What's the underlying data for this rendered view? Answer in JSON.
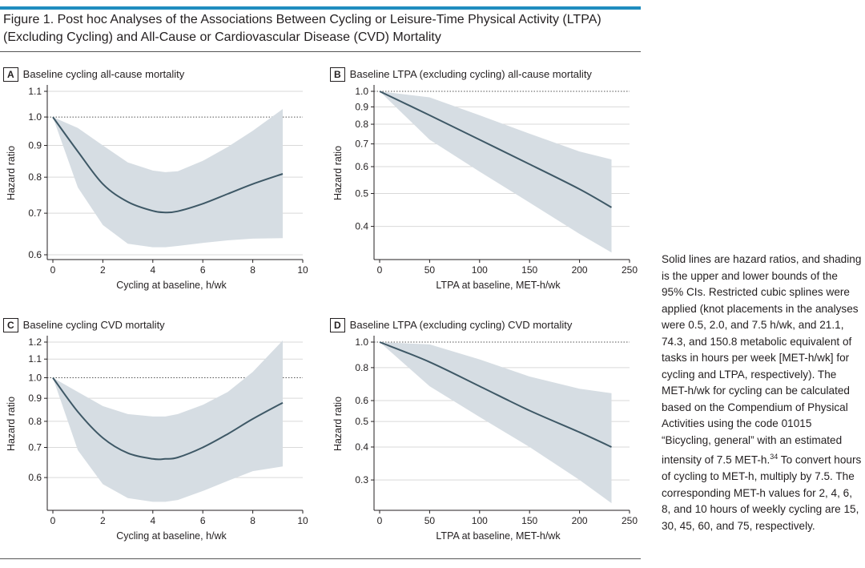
{
  "figure_title": "Figure 1. Post hoc Analyses of the Associations Between Cycling or Leisure-Time Physical Activity (LTPA) (Excluding Cycling) and All-Cause or Cardiovascular Disease (CVD) Mortality",
  "caption": {
    "text_before_sup": "Solid lines are hazard ratios, and shading is the upper and lower bounds of the 95% CIs. Restricted cubic splines were applied (knot placements in the analyses were 0.5, 2.0, and 7.5 h/wk, and 21.1, 74.3, and 150.8 metabolic equivalent of tasks in hours per week [MET-h/wk] for cycling and LTPA, respectively). The MET-h/wk for cycling can be calculated based on the Compendium of Physical Activities using the code 01015 “Bicycling, general” with an estimated intensity of 7.5 MET-h.",
    "sup": "34",
    "text_after_sup": " To convert hours of cycling to MET-h, multiply by 7.5. The corresponding MET-h values for 2, 4, 6, 8, and 10 hours of weekly cycling are 15, 30, 45, 60, and 75, respectively."
  },
  "colors": {
    "line": "#3e5866",
    "band": "#d6dde3",
    "grid": "#d9d9d9",
    "accent": "#1f8dbf"
  },
  "chart_data": [
    {
      "panel": "A",
      "type": "line",
      "title": "Baseline cycling all-cause mortality",
      "xlabel": "Cycling at baseline, h/wk",
      "ylabel": "Hazard ratio",
      "xlim": [
        0,
        10
      ],
      "ylim": [
        0.6,
        1.1
      ],
      "yscale": "log",
      "xticks": [
        0,
        2,
        4,
        6,
        8,
        10
      ],
      "yticks": [
        0.6,
        0.7,
        0.8,
        0.9,
        1.0,
        1.1
      ],
      "ytick_labels": [
        "0.6",
        "0.7",
        "0.8",
        "0.9",
        "1.0",
        "1.1"
      ],
      "reference_y": 1.0,
      "grid": true,
      "x": [
        0,
        1,
        2,
        3,
        4,
        4.5,
        5,
        6,
        7,
        8,
        9.2
      ],
      "y": [
        1.0,
        0.88,
        0.78,
        0.73,
        0.706,
        0.702,
        0.705,
        0.725,
        0.752,
        0.78,
        0.81
      ],
      "lower": [
        1.0,
        0.77,
        0.67,
        0.625,
        0.617,
        0.617,
        0.62,
        0.627,
        0.633,
        0.637,
        0.638
      ],
      "upper": [
        1.0,
        0.96,
        0.9,
        0.845,
        0.82,
        0.815,
        0.818,
        0.85,
        0.895,
        0.95,
        1.03
      ]
    },
    {
      "panel": "B",
      "type": "line",
      "title": "Baseline LTPA (excluding cycling) all-cause mortality",
      "xlabel": "LTPA at baseline, MET-h/wk",
      "ylabel": "Hazard ratio",
      "xlim": [
        0,
        250
      ],
      "ylim": [
        0.33,
        1.0
      ],
      "yscale": "log",
      "xticks": [
        0,
        50,
        100,
        150,
        200,
        250
      ],
      "yticks": [
        0.4,
        0.5,
        0.6,
        0.7,
        0.8,
        0.9,
        1.0
      ],
      "ytick_labels": [
        "0.4",
        "0.5",
        "0.6",
        "0.7",
        "0.8",
        "0.9",
        "1.0"
      ],
      "reference_y": 1.0,
      "grid": true,
      "x": [
        0,
        50,
        100,
        150,
        200,
        232
      ],
      "y": [
        1.0,
        0.85,
        0.72,
        0.61,
        0.515,
        0.455
      ],
      "lower": [
        1.0,
        0.72,
        0.58,
        0.47,
        0.38,
        0.335
      ],
      "upper": [
        1.0,
        0.96,
        0.85,
        0.75,
        0.665,
        0.63
      ]
    },
    {
      "panel": "C",
      "type": "line",
      "title": "Baseline cycling CVD mortality",
      "xlabel": "Cycling at baseline, h/wk",
      "ylabel": "Hazard ratio",
      "xlim": [
        0,
        10
      ],
      "ylim": [
        0.52,
        1.2
      ],
      "yscale": "log",
      "xticks": [
        0,
        2,
        4,
        6,
        8,
        10
      ],
      "yticks": [
        0.6,
        0.7,
        0.8,
        0.9,
        1.0,
        1.1,
        1.2
      ],
      "ytick_labels": [
        "0.6",
        "0.7",
        "0.8",
        "0.9",
        "1.0",
        "1.1",
        "1.2"
      ],
      "reference_y": 1.0,
      "grid": true,
      "x": [
        0,
        1,
        2,
        3,
        4,
        4.5,
        5,
        6,
        7,
        8,
        9.2
      ],
      "y": [
        1.0,
        0.84,
        0.735,
        0.68,
        0.66,
        0.66,
        0.665,
        0.7,
        0.75,
        0.81,
        0.88
      ],
      "lower": [
        1.0,
        0.69,
        0.58,
        0.54,
        0.53,
        0.53,
        0.535,
        0.56,
        0.59,
        0.62,
        0.635
      ],
      "upper": [
        1.0,
        0.93,
        0.865,
        0.83,
        0.82,
        0.82,
        0.83,
        0.87,
        0.93,
        1.03,
        1.21
      ]
    },
    {
      "panel": "D",
      "type": "line",
      "title": "Baseline LTPA (excluding cycling) CVD mortality",
      "xlabel": "LTPA at baseline, MET-h/wk",
      "ylabel": "Hazard ratio",
      "xlim": [
        0,
        250
      ],
      "ylim": [
        0.24,
        1.0
      ],
      "yscale": "log",
      "xticks": [
        0,
        50,
        100,
        150,
        200,
        250
      ],
      "yticks": [
        0.3,
        0.4,
        0.5,
        0.6,
        0.8,
        1.0
      ],
      "ytick_labels": [
        "0.3",
        "0.4",
        "0.5",
        "0.6",
        "0.8",
        "1.0"
      ],
      "reference_y": 1.0,
      "grid": true,
      "x": [
        0,
        50,
        100,
        150,
        200,
        232
      ],
      "y": [
        1.0,
        0.84,
        0.68,
        0.55,
        0.455,
        0.4
      ],
      "lower": [
        1.0,
        0.68,
        0.52,
        0.4,
        0.3,
        0.245
      ],
      "upper": [
        1.0,
        0.98,
        0.86,
        0.74,
        0.665,
        0.64
      ]
    }
  ]
}
